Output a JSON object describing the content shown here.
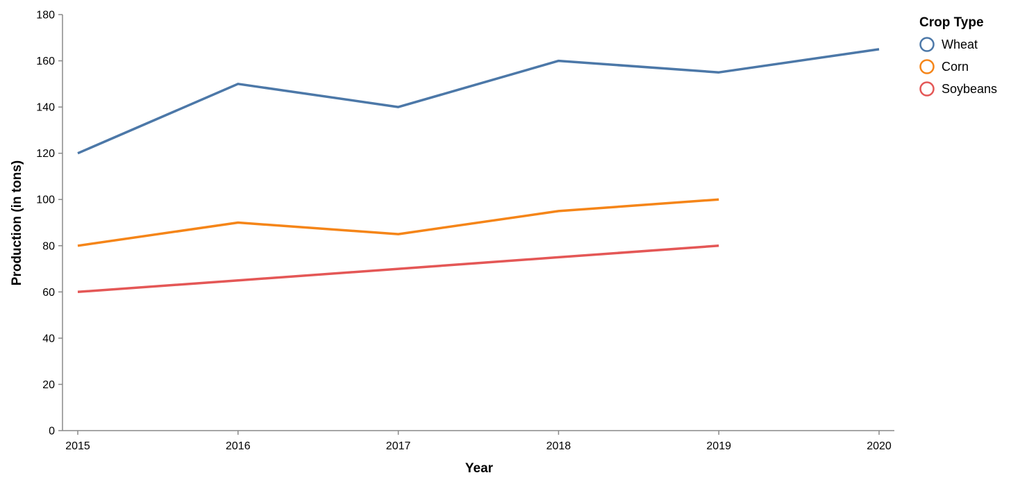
{
  "chart_data": {
    "type": "line",
    "title": "",
    "xlabel": "Year",
    "ylabel": "Production (in tons)",
    "x": [
      2015,
      2016,
      2017,
      2018,
      2019,
      2020
    ],
    "x_ticks": [
      "2015",
      "2016",
      "2017",
      "2018",
      "2019",
      "2020"
    ],
    "ylim": [
      0,
      180
    ],
    "y_ticks": [
      0,
      20,
      40,
      60,
      80,
      100,
      120,
      140,
      160,
      180
    ],
    "grid": false,
    "legend": {
      "title": "Crop Type",
      "placement": "top-right"
    },
    "series": [
      {
        "name": "Wheat",
        "color": "#4c78a8",
        "values": [
          120,
          150,
          140,
          160,
          155,
          165
        ]
      },
      {
        "name": "Corn",
        "color": "#f58518",
        "values": [
          80,
          90,
          85,
          95,
          100,
          null
        ]
      },
      {
        "name": "Soybeans",
        "color": "#e45756",
        "values": [
          60,
          65,
          70,
          75,
          80,
          null
        ]
      }
    ]
  }
}
